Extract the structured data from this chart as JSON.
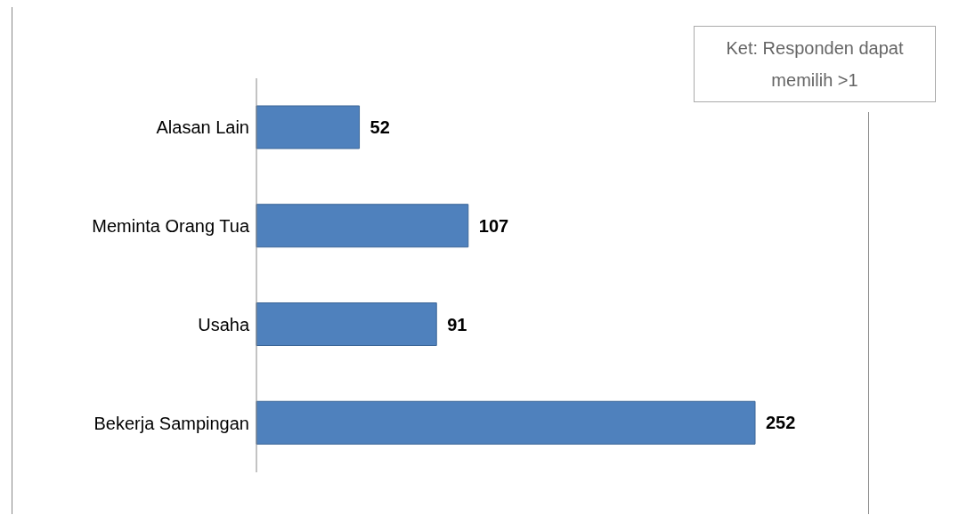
{
  "chart_data": {
    "type": "bar",
    "orientation": "horizontal",
    "categories": [
      "Alasan Lain",
      "Meminta Orang Tua",
      "Usaha",
      "Bekerja Sampingan"
    ],
    "values": [
      52,
      107,
      91,
      252
    ],
    "color": "#4f81bd",
    "data_labels": true,
    "annotations": [
      "Ket: Responden dapat memilih >1"
    ]
  }
}
